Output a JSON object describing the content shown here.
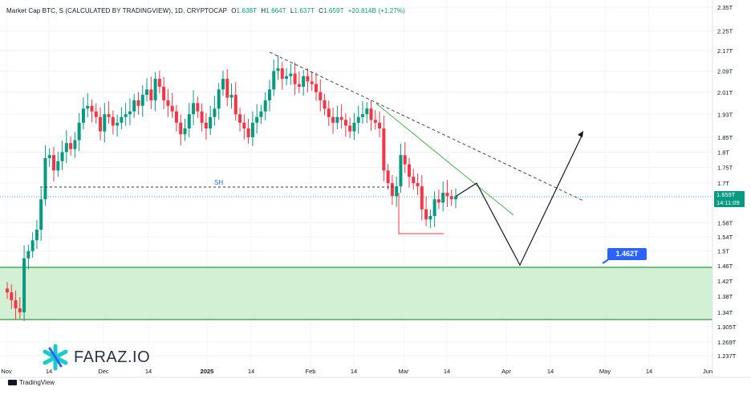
{
  "header": {
    "title": "Market Cap BTC, S (CALCULATED BY TRADINGVIEW), 1D, CRYPTOCAP",
    "open_label": "O",
    "open_value": "1.638T",
    "high_label": "H",
    "high_value": "1.664T",
    "low_label": "L",
    "low_value": "1.637T",
    "close_label": "C",
    "close_value": "1.659T",
    "change": "+20.814B (+1.27%)"
  },
  "footer": {
    "platform": "TradingView",
    "brand": "FARAZ.IO"
  },
  "price_label": {
    "value": "1.659T",
    "countdown": "14:11:09"
  },
  "annotations": {
    "swing_high_label": "SH",
    "target_label": "1.462T"
  },
  "colors": {
    "up": "#089981",
    "down": "#f23645",
    "support_zone": "#cfeccf",
    "support_border": "#2e9e3a",
    "accent": "#2962ff"
  },
  "chart_data": {
    "type": "candlestick",
    "title": "Market Cap BTC, S (CALCULATED BY TRADINGVIEW), 1D, CRYPTOCAP",
    "y_scale": "log",
    "y_ticks": [
      "2.35T",
      "2.25T",
      "2.17T",
      "2.09T",
      "2.01T",
      "1.93T",
      "1.85T",
      "1.8T",
      "1.75T",
      "1.7T",
      "1.58T",
      "1.54T",
      "1.5T",
      "1.46T",
      "1.42T",
      "1.38T",
      "1.34T",
      "1.305T",
      "1.269T",
      "1.237T"
    ],
    "x_ticks": [
      "Nov",
      "14",
      "Dec",
      "14",
      "2025",
      "14",
      "Feb",
      "14",
      "Mar",
      "14",
      "Apr",
      "14",
      "May",
      "14",
      "Jun"
    ],
    "last_close": 1.659,
    "swing_high_level": 1.7,
    "support_zone": [
      1.32,
      1.453
    ],
    "target_level": 1.462,
    "closes": [
      1.39,
      1.37,
      1.35,
      1.34,
      1.48,
      1.5,
      1.53,
      1.56,
      1.65,
      1.78,
      1.79,
      1.74,
      1.77,
      1.8,
      1.83,
      1.81,
      1.84,
      1.9,
      1.95,
      1.96,
      1.94,
      1.92,
      1.87,
      1.93,
      1.92,
      1.89,
      1.9,
      1.92,
      1.93,
      1.94,
      1.98,
      1.96,
      2.0,
      2.02,
      1.98,
      2.06,
      2.03,
      1.98,
      1.96,
      1.94,
      1.9,
      1.86,
      1.88,
      1.93,
      1.97,
      1.94,
      1.9,
      1.88,
      1.92,
      1.95,
      2.02,
      2.06,
      1.99,
      2.0,
      1.93,
      1.9,
      1.88,
      1.85,
      1.9,
      1.92,
      1.94,
      1.98,
      2.02,
      2.09,
      2.1,
      2.06,
      2.07,
      2.08,
      2.04,
      2.03,
      2.07,
      2.05,
      2.04,
      2.01,
      1.98,
      1.95,
      1.92,
      1.9,
      1.92,
      1.91,
      1.89,
      1.87,
      1.9,
      1.92,
      1.93,
      1.95,
      1.91,
      1.9,
      1.88,
      1.74,
      1.7,
      1.66,
      1.69,
      1.79,
      1.76,
      1.72,
      1.7,
      1.69,
      1.62,
      1.59,
      1.6,
      1.65,
      1.64,
      1.67,
      1.66,
      1.65,
      1.659
    ],
    "projection": [
      {
        "date": "Mar 20",
        "value": 1.7
      },
      {
        "date": "Apr 5",
        "value": 1.462
      },
      {
        "date": "Apr 25",
        "value": 1.86
      }
    ]
  }
}
